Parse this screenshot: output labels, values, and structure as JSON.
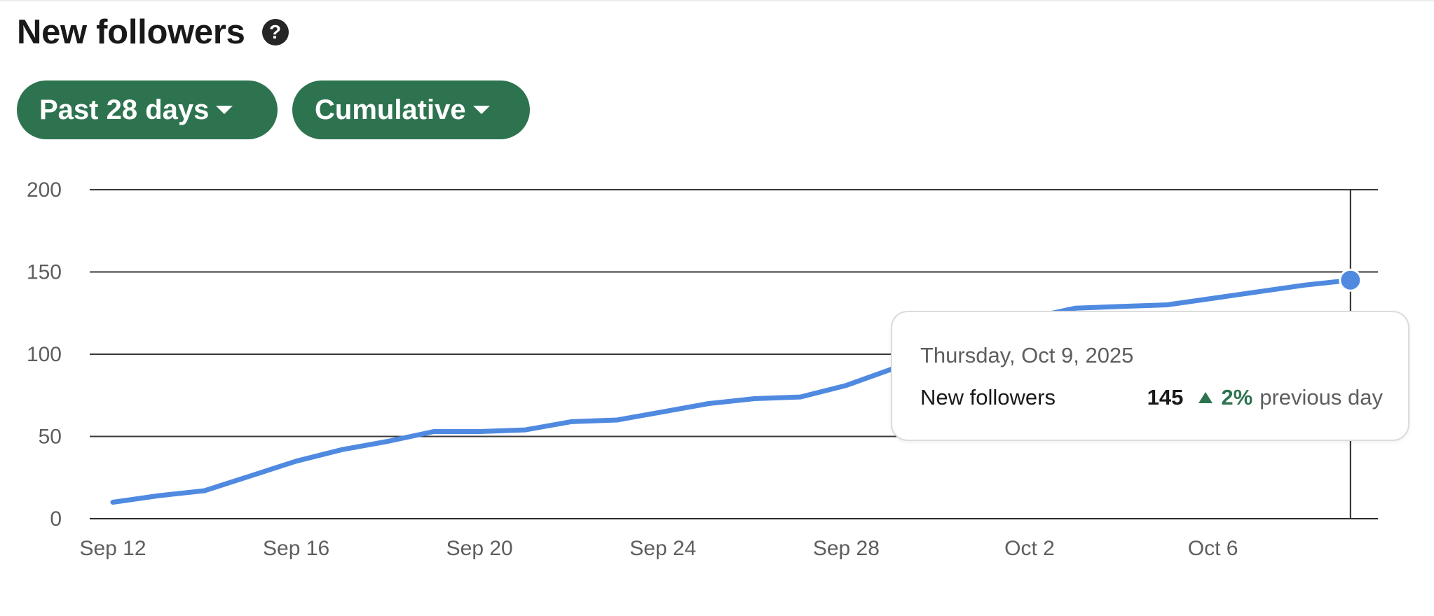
{
  "header": {
    "title": "New followers",
    "help_icon": "question-circle-icon"
  },
  "filters": {
    "range_label": "Past 28 days",
    "mode_label": "Cumulative",
    "accent_color": "#2e7350"
  },
  "chart_data": {
    "type": "line",
    "title": "",
    "xlabel": "",
    "ylabel": "",
    "ylim": [
      0,
      200
    ],
    "y_ticks": [
      "0",
      "50",
      "100",
      "150",
      "200"
    ],
    "x_ticks": [
      "Sep 12",
      "Sep 16",
      "Sep 20",
      "Sep 24",
      "Sep 28",
      "Oct 2",
      "Oct 6"
    ],
    "grid": "horizontal",
    "line_color": "#4f8ae0",
    "series": [
      {
        "x": [
          "Sep 12",
          "Sep 13",
          "Sep 14",
          "Sep 15",
          "Sep 16",
          "Sep 17",
          "Sep 18",
          "Sep 19",
          "Sep 20",
          "Sep 21",
          "Sep 22",
          "Sep 23",
          "Sep 24",
          "Sep 25",
          "Sep 26",
          "Sep 27",
          "Sep 28",
          "Sep 29",
          "Sep 30",
          "Oct 1",
          "Oct 2",
          "Oct 3",
          "Oct 4",
          "Oct 5",
          "Oct 6",
          "Oct 7",
          "Oct 8",
          "Oct 9"
        ],
        "values": [
          10,
          14,
          17,
          26,
          35,
          42,
          47,
          53,
          53,
          54,
          59,
          60,
          65,
          70,
          73,
          74,
          81,
          91,
          101,
          112,
          122,
          128,
          129,
          130,
          134,
          138,
          142,
          145
        ]
      }
    ],
    "highlight_index": 27
  },
  "tooltip": {
    "date": "Thursday, Oct 9, 2025",
    "metric_label": "New followers",
    "value": "145",
    "change_pct": "2%",
    "change_suffix": "previous day",
    "trend_icon": "triangle-up-icon"
  }
}
